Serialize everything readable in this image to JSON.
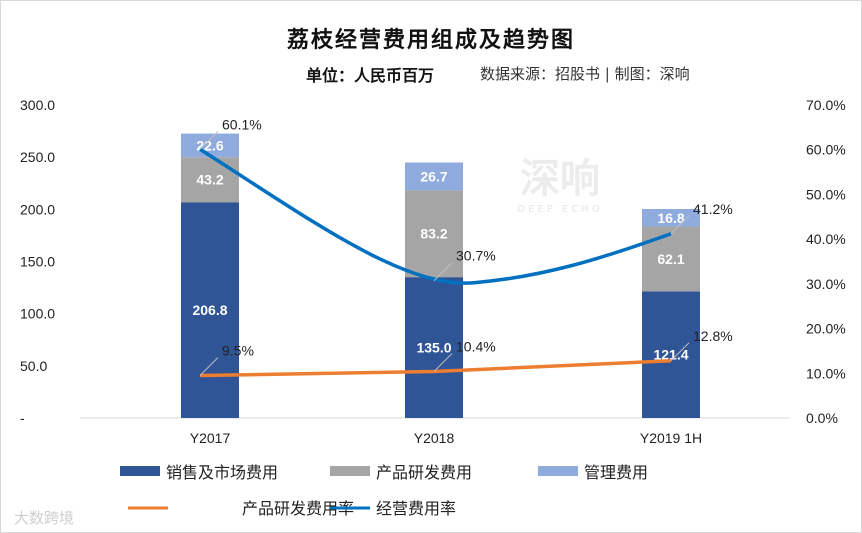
{
  "header": {
    "title": "荔枝经营费用组成及趋势图",
    "unit": "单位：人民币百万",
    "source": "数据来源：招股书 | 制图：深响"
  },
  "watermarks": {
    "center": "深响",
    "center_sub": "DEEP ECHO",
    "corner": "大数跨境"
  },
  "chart_data": {
    "type": "bar",
    "stacked": true,
    "categories": [
      "Y2017",
      "Y2018",
      "Y2019 1H"
    ],
    "ylim": [
      0,
      300
    ],
    "y_ticks": [
      "-",
      "50.0",
      "100.0",
      "150.0",
      "200.0",
      "250.0",
      "300.0"
    ],
    "y2lim": [
      0,
      70
    ],
    "y2_ticks": [
      "0.0%",
      "10.0%",
      "20.0%",
      "30.0%",
      "40.0%",
      "50.0%",
      "60.0%",
      "70.0%"
    ],
    "grid": false,
    "legend_position": "bottom",
    "series": [
      {
        "name": "销售及市场费用",
        "type": "bar",
        "color": "#2f5597",
        "values": [
          206.8,
          135.0,
          121.4
        ],
        "labels": [
          "206.8",
          "135.0",
          "121.4"
        ]
      },
      {
        "name": "产品研发费用",
        "type": "bar",
        "color": "#a5a5a5",
        "values": [
          43.2,
          83.2,
          62.1
        ],
        "labels": [
          "43.2",
          "83.2",
          "62.1"
        ]
      },
      {
        "name": "管理费用",
        "type": "bar",
        "color": "#8faadc",
        "values": [
          22.6,
          26.7,
          16.8
        ],
        "labels": [
          "22.6",
          "26.7",
          "16.8"
        ]
      },
      {
        "name": "产品研发费用率",
        "type": "line",
        "axis": "right",
        "color": "#ed7d31",
        "values": [
          9.5,
          10.4,
          12.8
        ],
        "labels": [
          "9.5%",
          "10.4%",
          "12.8%"
        ]
      },
      {
        "name": "经营费用率",
        "type": "line",
        "axis": "right",
        "smooth": true,
        "color": "#0070c0",
        "values": [
          60.1,
          30.7,
          41.2
        ],
        "labels": [
          "60.1%",
          "30.7%",
          "41.2%"
        ]
      }
    ]
  }
}
